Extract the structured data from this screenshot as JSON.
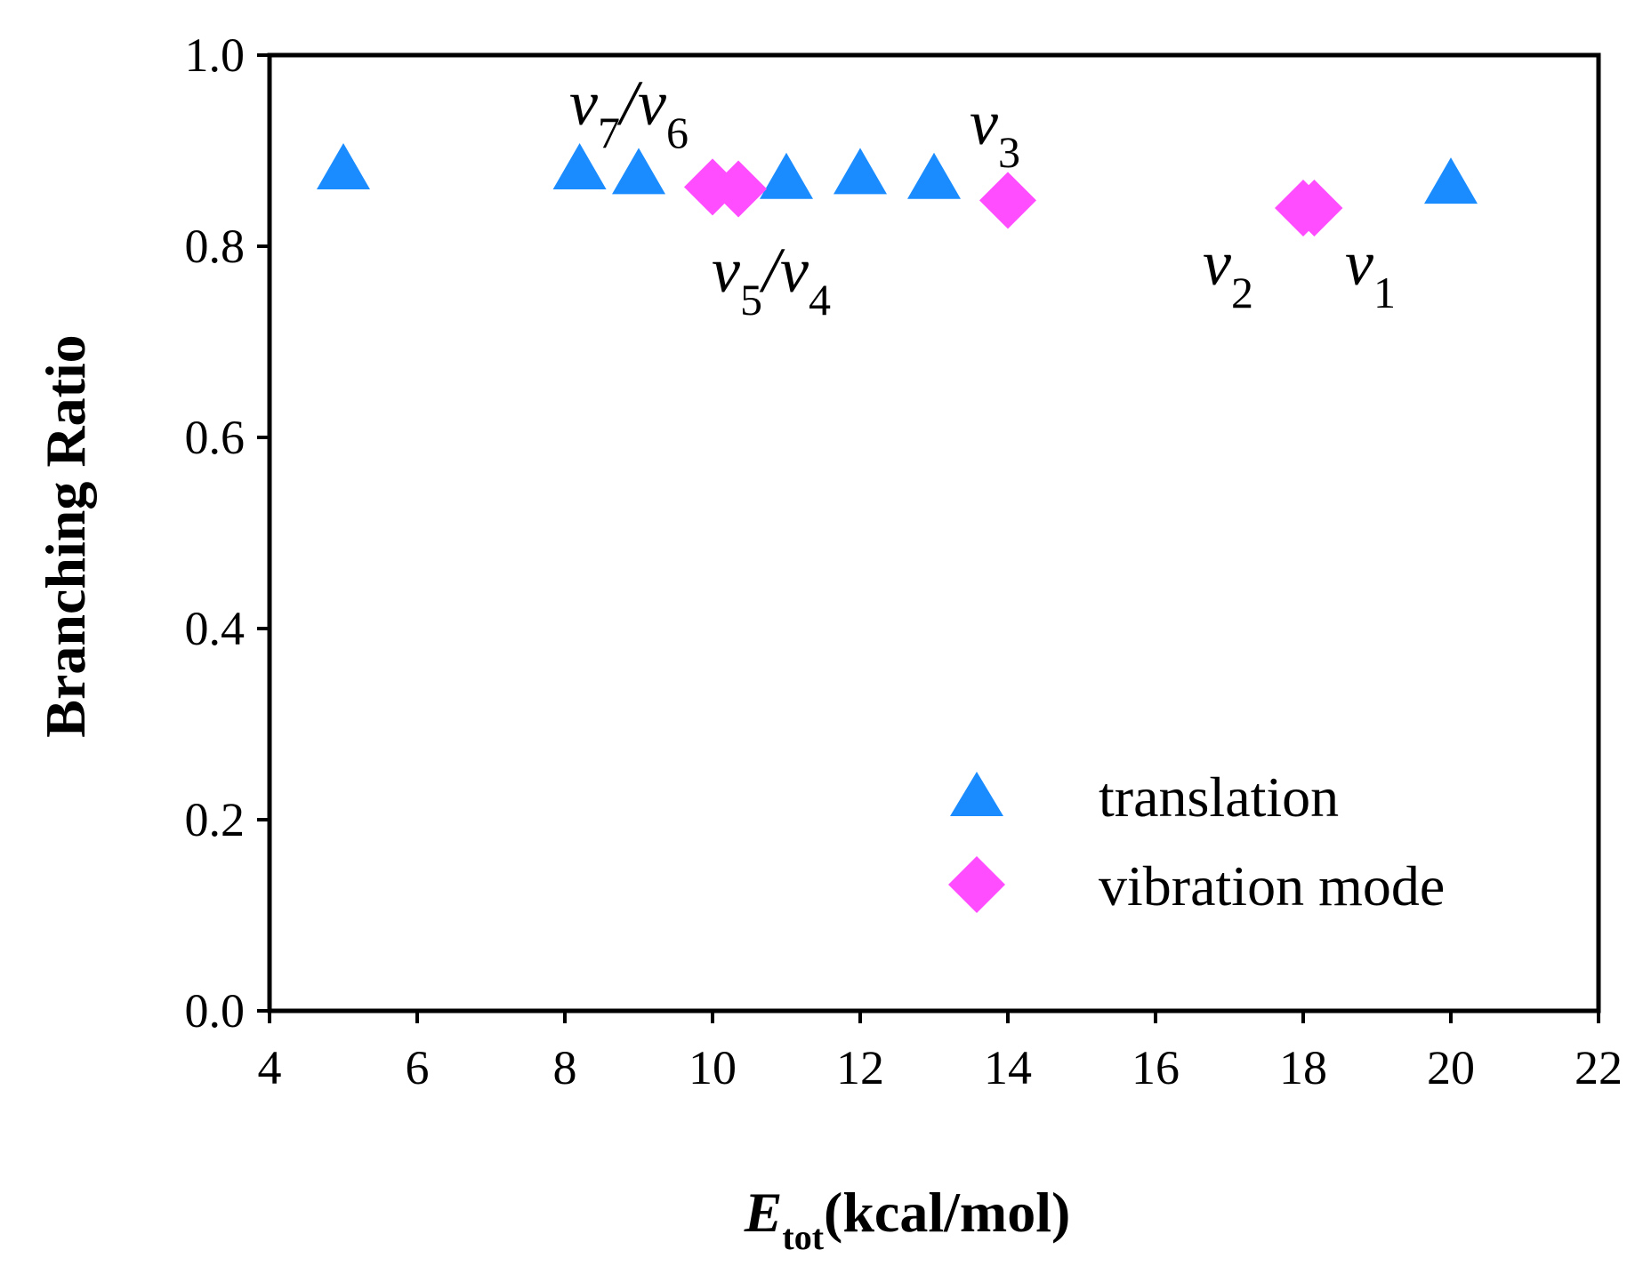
{
  "chart_data": {
    "type": "scatter",
    "xlabel": "E",
    "xlabel_subscript": "tot",
    "xlabel_unit": "(kcal/mol)",
    "ylabel": "Branching Ratio",
    "xlim": [
      4,
      22
    ],
    "ylim": [
      0.0,
      1.0
    ],
    "x_ticks": [
      "4",
      "6",
      "8",
      "10",
      "12",
      "14",
      "16",
      "18",
      "20",
      "22"
    ],
    "y_ticks": [
      "0.0",
      "0.2",
      "0.4",
      "0.6",
      "0.8",
      "1.0"
    ],
    "grid": false,
    "legend_position": "bottom-right",
    "series": [
      {
        "name": "translation",
        "marker": "triangle",
        "color": "#1a8cff",
        "x": [
          5,
          8.2,
          9,
          11,
          12,
          13,
          20
        ],
        "y": [
          0.88,
          0.88,
          0.875,
          0.87,
          0.875,
          0.87,
          0.865
        ]
      },
      {
        "name": "vibration mode",
        "marker": "diamond",
        "color": "#ff4dff",
        "x": [
          10,
          10.35,
          14,
          18,
          18.15
        ],
        "y": [
          0.862,
          0.86,
          0.848,
          0.84,
          0.84
        ]
      }
    ],
    "annotations": [
      {
        "base1": "v",
        "sub1": "7",
        "sep": "/",
        "base2": "v",
        "sub2": "6"
      },
      {
        "base1": "v",
        "sub1": "5",
        "sep": "/",
        "base2": "v",
        "sub2": "4"
      },
      {
        "base1": "v",
        "sub1": "3"
      },
      {
        "base1": "v",
        "sub1": "2"
      },
      {
        "base1": "v",
        "sub1": "1"
      }
    ]
  }
}
